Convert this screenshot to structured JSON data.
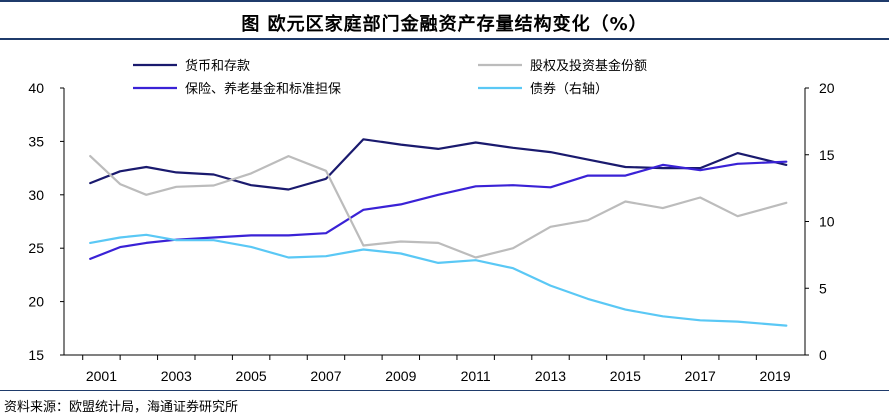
{
  "chart_data": {
    "type": "line",
    "title": "图 欧元区家庭部门金融资产存量结构变化（%）",
    "source": "资料来源：欧盟统计局，海通证券研究所",
    "x_tick_labels": [
      "2001",
      "2003",
      "2005",
      "2007",
      "2009",
      "2011",
      "2013",
      "2015",
      "2017",
      "2019"
    ],
    "x": [
      2000.7,
      2001.5,
      2002.2,
      2003,
      2004,
      2005,
      2006,
      2007,
      2008,
      2009,
      2010,
      2011,
      2012,
      2013,
      2014,
      2015,
      2016,
      2017,
      2018,
      2019.3
    ],
    "xlim": [
      2000,
      2019.8
    ],
    "y_left": {
      "lim": [
        15,
        40
      ],
      "ticks": [
        "15",
        "20",
        "25",
        "30",
        "35",
        "40"
      ]
    },
    "y_right": {
      "lim": [
        0,
        20
      ],
      "ticks": [
        "0",
        "5",
        "10",
        "15",
        "20"
      ]
    },
    "series": [
      {
        "name": "货币和存款",
        "axis": "left",
        "color": "#1a1a6e",
        "values": [
          31.1,
          32.2,
          32.6,
          32.1,
          31.9,
          30.9,
          30.5,
          31.5,
          35.2,
          34.7,
          34.3,
          34.9,
          34.4,
          34.0,
          33.3,
          32.6,
          32.5,
          32.5,
          33.9,
          32.8
        ]
      },
      {
        "name": "保险、养老基金和标准担保",
        "axis": "left",
        "color": "#3a22d6",
        "values": [
          24.0,
          25.1,
          25.5,
          25.8,
          26.0,
          26.2,
          26.2,
          26.4,
          28.6,
          29.1,
          30.0,
          30.8,
          30.9,
          30.7,
          31.8,
          31.8,
          32.8,
          32.3,
          32.9,
          33.1
        ]
      },
      {
        "name": "股权及投资基金份额",
        "axis": "right",
        "color": "#bcbcbc",
        "values": [
          14.9,
          12.8,
          12.0,
          12.6,
          12.7,
          13.6,
          14.9,
          13.8,
          8.2,
          8.5,
          8.4,
          7.3,
          8.0,
          9.6,
          10.1,
          11.5,
          11.0,
          11.8,
          10.4,
          11.4
        ]
      },
      {
        "name": "债券（右轴）",
        "axis": "right",
        "color": "#5ac8f5",
        "values": [
          8.4,
          8.8,
          9.0,
          8.6,
          8.6,
          8.1,
          7.3,
          7.4,
          7.9,
          7.6,
          6.9,
          7.1,
          6.5,
          5.2,
          4.2,
          3.4,
          2.9,
          2.6,
          2.5,
          2.2
        ]
      }
    ]
  }
}
